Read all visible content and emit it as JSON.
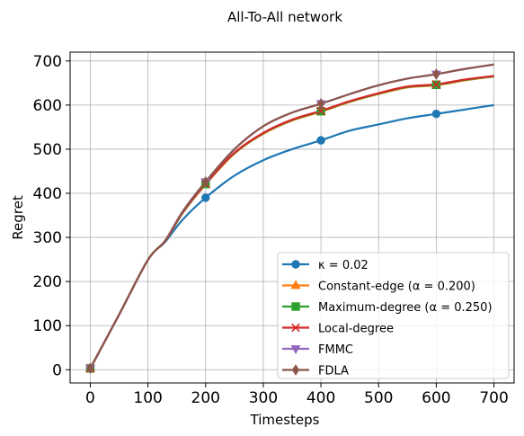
{
  "chart_data": {
    "type": "line",
    "title": "All-To-All network",
    "xlabel": "Timesteps",
    "ylabel": "Regret",
    "xlim": [
      -35,
      735
    ],
    "ylim": [
      -30,
      720
    ],
    "xticks": [
      0,
      100,
      200,
      300,
      400,
      500,
      600,
      700
    ],
    "yticks": [
      0,
      100,
      200,
      300,
      400,
      500,
      600,
      700
    ],
    "grid": true,
    "legend_position": "lower-right",
    "series": [
      {
        "name": "κ = 0.02",
        "color": "#1f77b4",
        "marker": "circle",
        "x": [
          0,
          50,
          100,
          130,
          160,
          200,
          250,
          300,
          350,
          400,
          450,
          500,
          550,
          600,
          650,
          700
        ],
        "y": [
          3,
          125,
          249,
          290,
          340,
          390,
          440,
          475,
          500,
          520,
          542,
          556,
          570,
          580,
          590,
          600
        ],
        "marker_x": [
          0,
          200,
          400,
          600
        ],
        "marker_y": [
          3,
          390,
          520,
          580
        ]
      },
      {
        "name": "Constant-edge (α = 0.200)",
        "color": "#ff7f0e",
        "marker": "triangle-up",
        "x": [
          0,
          50,
          100,
          130,
          160,
          200,
          250,
          300,
          350,
          400,
          450,
          500,
          550,
          600,
          650,
          700
        ],
        "y": [
          3,
          125,
          249,
          292,
          355,
          420,
          490,
          535,
          565,
          585,
          607,
          625,
          640,
          645,
          656,
          665
        ],
        "marker_x": [
          0,
          200,
          400,
          600
        ],
        "marker_y": [
          3,
          420,
          585,
          645
        ]
      },
      {
        "name": "Maximum-degree (α = 0.250)",
        "color": "#2ca02c",
        "marker": "square",
        "x": [
          0,
          50,
          100,
          130,
          160,
          200,
          250,
          300,
          350,
          400,
          450,
          500,
          550,
          600,
          650,
          700
        ],
        "y": [
          3,
          125,
          249,
          292,
          355,
          421,
          491,
          536,
          566,
          586,
          608,
          626,
          641,
          646,
          657,
          665
        ],
        "marker_x": [
          0,
          200,
          400,
          600
        ],
        "marker_y": [
          3,
          421,
          586,
          646
        ]
      },
      {
        "name": "Local-degree",
        "color": "#d62728",
        "marker": "x",
        "x": [
          0,
          50,
          100,
          130,
          160,
          200,
          250,
          300,
          350,
          400,
          450,
          500,
          550,
          600,
          650,
          700
        ],
        "y": [
          3,
          125,
          249,
          292,
          356,
          422,
          492,
          537,
          567,
          587,
          609,
          627,
          642,
          647,
          658,
          666
        ],
        "marker_x": [
          0,
          200,
          400,
          600
        ],
        "marker_y": [
          3,
          422,
          587,
          647
        ]
      },
      {
        "name": "FMMC",
        "color": "#9467bd",
        "marker": "triangle-down",
        "x": [
          0,
          50,
          100,
          130,
          160,
          200,
          250,
          300,
          350,
          400,
          450,
          500,
          550,
          600,
          650,
          700
        ],
        "y": [
          3,
          125,
          249,
          293,
          358,
          426,
          500,
          552,
          583,
          603,
          625,
          645,
          660,
          670,
          682,
          692
        ],
        "marker_x": [
          0,
          200,
          400,
          600
        ],
        "marker_y": [
          3,
          426,
          603,
          670
        ]
      },
      {
        "name": "FDLA",
        "color": "#8c564b",
        "marker": "diamond",
        "x": [
          0,
          50,
          100,
          130,
          160,
          200,
          250,
          300,
          350,
          400,
          450,
          500,
          550,
          600,
          650,
          700
        ],
        "y": [
          3,
          125,
          249,
          293,
          358,
          426,
          500,
          552,
          583,
          603,
          625,
          645,
          660,
          670,
          682,
          692
        ],
        "marker_x": [
          0,
          200,
          400,
          600
        ],
        "marker_y": [
          3,
          426,
          603,
          670
        ]
      }
    ]
  }
}
